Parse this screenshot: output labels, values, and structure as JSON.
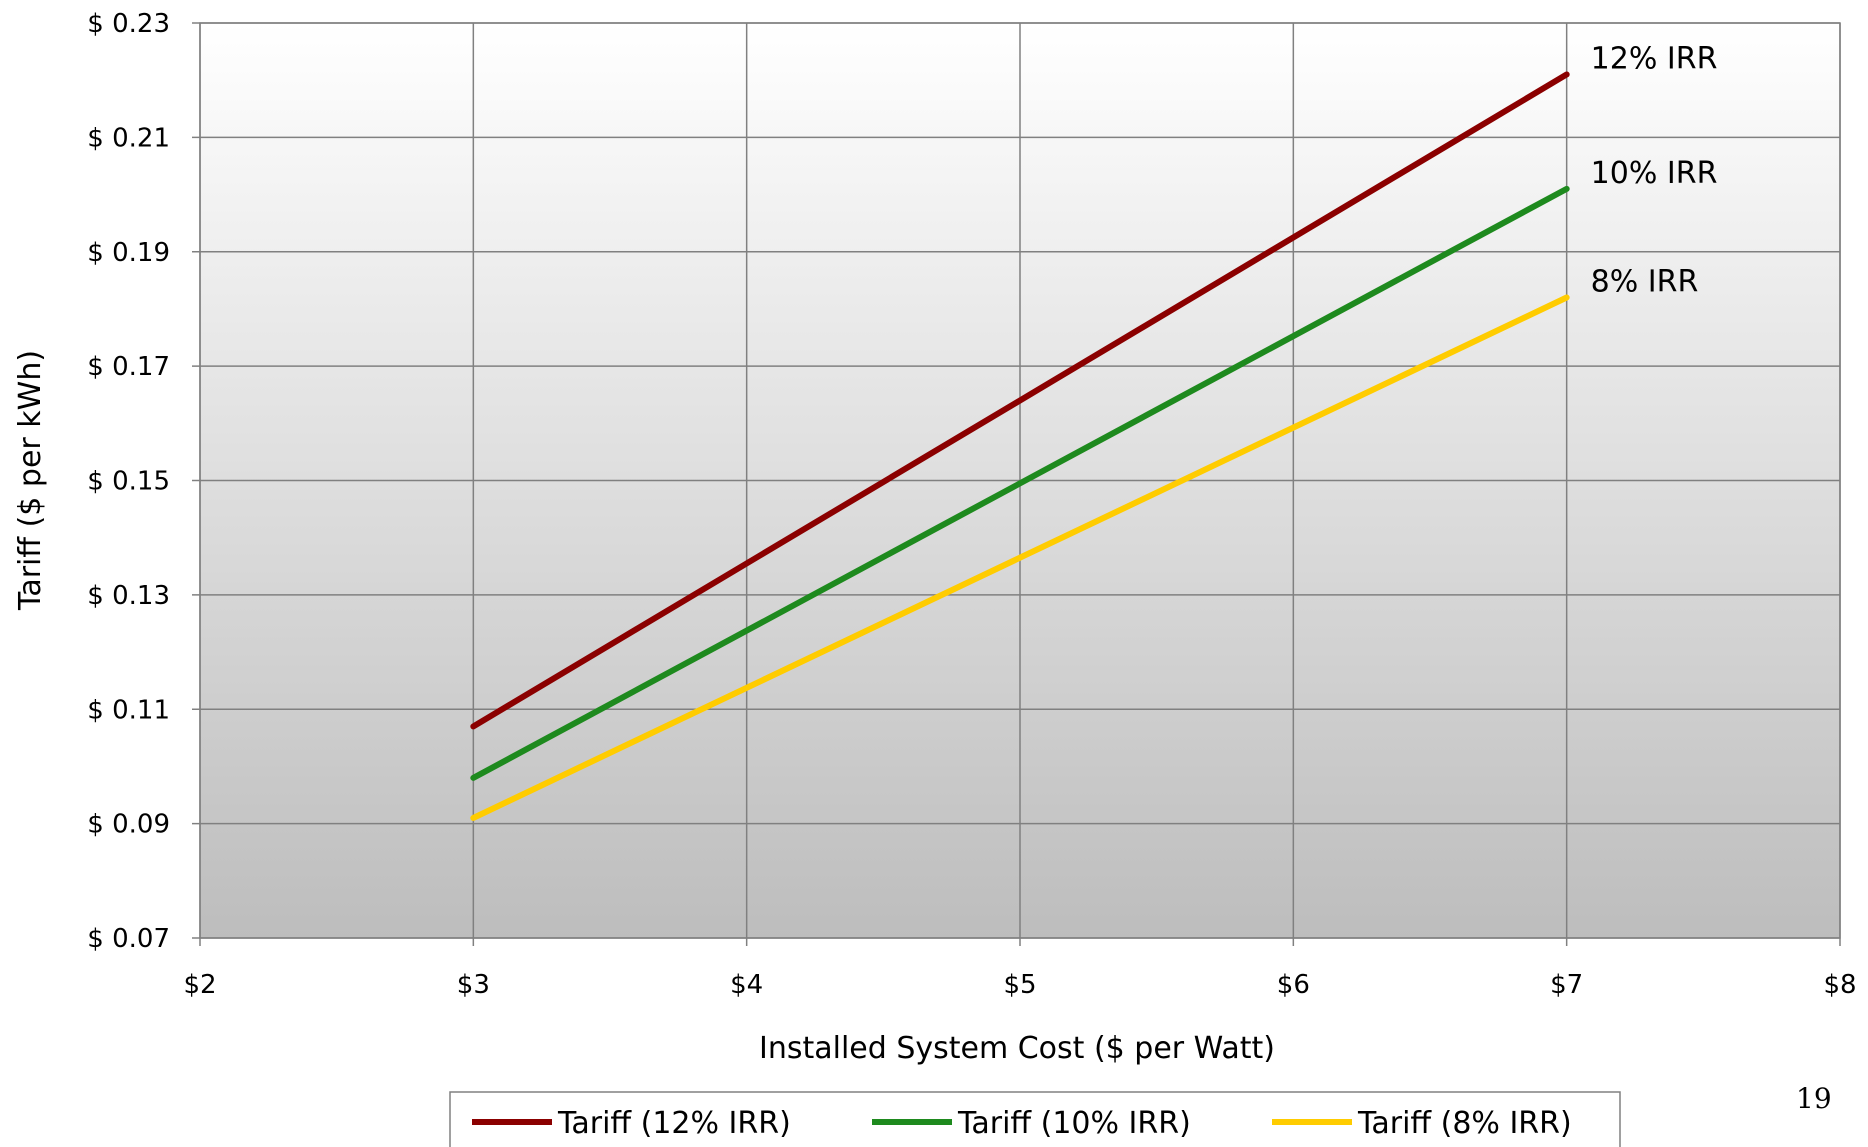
{
  "chart_data": {
    "type": "line",
    "title": "",
    "xlabel": "Installed System Cost ($ per Watt)",
    "ylabel": "Tariff ($ per kWh)",
    "xlim": [
      2,
      8
    ],
    "ylim": [
      0.07,
      0.23
    ],
    "x_ticks": [
      2,
      3,
      4,
      5,
      6,
      7,
      8
    ],
    "x_tick_labels": [
      "$2",
      "$3",
      "$4",
      "$5",
      "$6",
      "$7",
      "$8"
    ],
    "y_ticks": [
      0.07,
      0.09,
      0.11,
      0.13,
      0.15,
      0.17,
      0.19,
      0.21,
      0.23
    ],
    "y_tick_labels": [
      "$ 0.07",
      "$ 0.09",
      "$ 0.11",
      "$ 0.13",
      "$ 0.15",
      "$ 0.17",
      "$ 0.19",
      "$ 0.21",
      "$ 0.23"
    ],
    "grid": true,
    "legend_position": "bottom",
    "series": [
      {
        "name": "Tariff (12% IRR)",
        "end_label": "12% IRR",
        "color": "#8B0000",
        "x": [
          3,
          7
        ],
        "y": [
          0.107,
          0.221
        ]
      },
      {
        "name": "Tariff (10% IRR)",
        "end_label": "10% IRR",
        "color": "#1E8A1E",
        "x": [
          3,
          7
        ],
        "y": [
          0.098,
          0.201
        ]
      },
      {
        "name": "Tariff (8% IRR)",
        "end_label": "8% IRR",
        "color": "#FFCC00",
        "x": [
          3,
          7
        ],
        "y": [
          0.091,
          0.182
        ]
      }
    ]
  },
  "page_number": "19"
}
